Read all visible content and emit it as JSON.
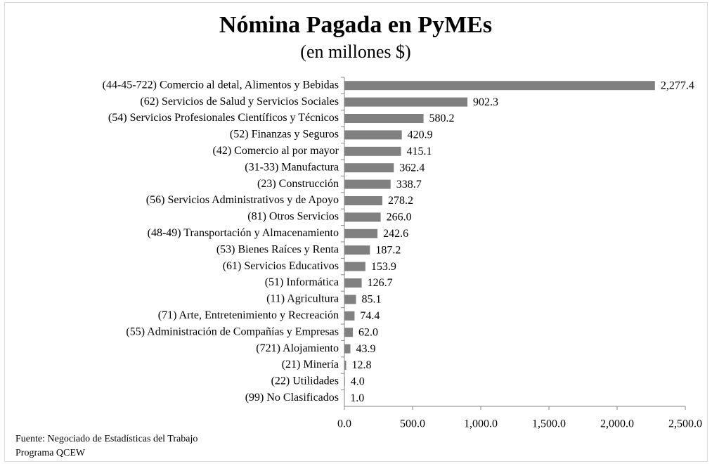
{
  "chart_data": {
    "type": "bar",
    "orientation": "horizontal",
    "title": "Nómina  Pagada en PyMEs",
    "subtitle": "(en millones $)",
    "categories": [
      "(44-45-722) Comercio al detal, Alimentos y Bebidas",
      "(62) Servicios de Salud y Servicios Sociales",
      "(54) Servicios Profesionales Científicos y Técnicos",
      "(52) Finanzas y Seguros",
      "(42) Comercio al por mayor",
      "(31-33) Manufactura",
      "(23) Construcción",
      "(56) Servicios Administrativos y de Apoyo",
      "(81) Otros Servicios",
      "(48-49) Transportación y Almacenamiento",
      "(53) Bienes Raíces y Renta",
      "(61) Servicios Educativos",
      "(51) Informática",
      "(11) Agricultura",
      "(71) Arte, Entretenimiento y Recreación",
      "(55) Administración de Compañías y Empresas",
      "(721) Alojamiento",
      "(21) Minería",
      "(22) Utilidades",
      "(99) No Clasificados"
    ],
    "values": [
      2277.4,
      902.3,
      580.2,
      420.9,
      415.1,
      362.4,
      338.7,
      278.2,
      266.0,
      242.6,
      187.2,
      153.9,
      126.7,
      85.1,
      74.4,
      62.0,
      43.9,
      12.8,
      4.0,
      1.0
    ],
    "value_labels": [
      "2,277.4",
      "902.3",
      "580.2",
      "420.9",
      "415.1",
      "362.4",
      "338.7",
      "278.2",
      "266.0",
      "242.6",
      "187.2",
      "153.9",
      "126.7",
      "85.1",
      "74.4",
      "62.0",
      "43.9",
      "12.8",
      "4.0",
      "1.0"
    ],
    "color": "#808080",
    "xlim": [
      0,
      2500
    ],
    "xticks": [
      {
        "value": 0,
        "label": "0.0"
      },
      {
        "value": 500,
        "label": "500.0"
      },
      {
        "value": 1000,
        "label": "1,000.0"
      },
      {
        "value": 1500,
        "label": "1,500.0"
      },
      {
        "value": 2000,
        "label": "2,000.0"
      },
      {
        "value": 2500,
        "label": "2,500.0"
      }
    ],
    "grid": false,
    "source": [
      "Fuente: Negociado de Estadísticas del Trabajo",
      "Programa QCEW"
    ]
  }
}
